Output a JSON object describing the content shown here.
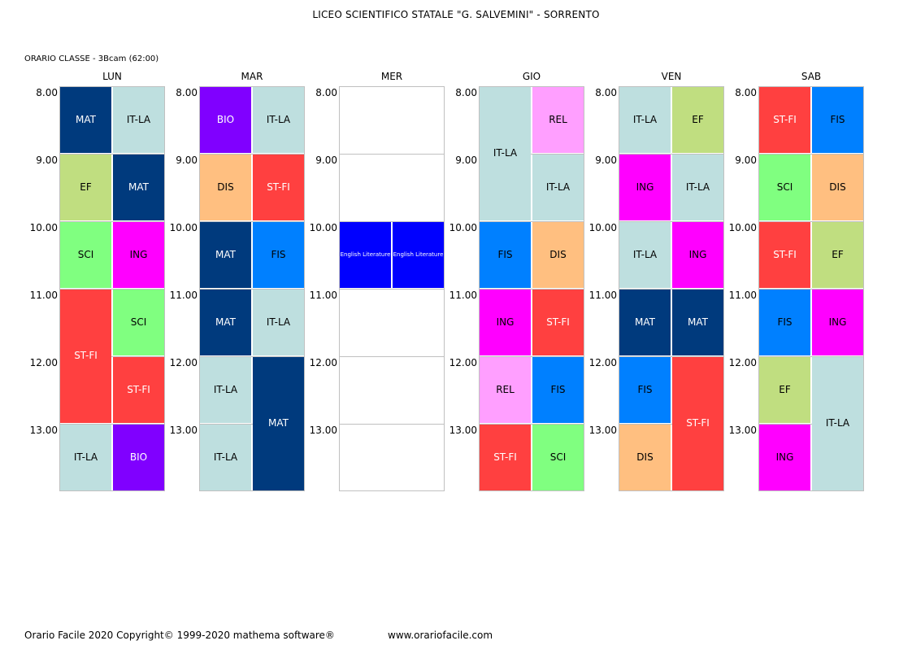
{
  "header": {
    "title": "LICEO SCIENTIFICO STATALE \"G. SALVEMINI\" - SORRENTO",
    "subtitle": "ORARIO CLASSE  -  3Bcam (62:00)"
  },
  "times": [
    "8.00",
    "9.00",
    "10.00",
    "11.00",
    "12.00",
    "13.00"
  ],
  "days": [
    "LUN",
    "MAR",
    "MER",
    "GIO",
    "VEN",
    "SAB"
  ],
  "subject_colors": {
    "MAT": {
      "bg": "#003A7D",
      "fg": "#ffffff"
    },
    "IT-LA": {
      "bg": "#BEDFDF",
      "fg": "#000000"
    },
    "EF": {
      "bg": "#C0DE80",
      "fg": "#000000"
    },
    "SCI": {
      "bg": "#80FF80",
      "fg": "#000000"
    },
    "ING": {
      "bg": "#FF00FF",
      "fg": "#000000"
    },
    "ST-FI": {
      "bg": "#FF4040",
      "fg": "#ffffff"
    },
    "BIO": {
      "bg": "#8000FF",
      "fg": "#ffffff"
    },
    "DIS": {
      "bg": "#FFBF80",
      "fg": "#000000"
    },
    "FIS": {
      "bg": "#0080FF",
      "fg": "#000000"
    },
    "REL": {
      "bg": "#FF9FFF",
      "fg": "#000000"
    },
    "English Literature": {
      "bg": "#0000FF",
      "fg": "#ffffff"
    }
  },
  "lessons": [
    {
      "day": 0,
      "col": 0,
      "start": 0,
      "span": 1,
      "subject": "MAT"
    },
    {
      "day": 0,
      "col": 1,
      "start": 0,
      "span": 1,
      "subject": "IT-LA"
    },
    {
      "day": 0,
      "col": 0,
      "start": 1,
      "span": 1,
      "subject": "EF"
    },
    {
      "day": 0,
      "col": 1,
      "start": 1,
      "span": 1,
      "subject": "MAT"
    },
    {
      "day": 0,
      "col": 0,
      "start": 2,
      "span": 1,
      "subject": "SCI"
    },
    {
      "day": 0,
      "col": 1,
      "start": 2,
      "span": 1,
      "subject": "ING"
    },
    {
      "day": 0,
      "col": 0,
      "start": 3,
      "span": 2,
      "subject": "ST-FI"
    },
    {
      "day": 0,
      "col": 1,
      "start": 3,
      "span": 1,
      "subject": "SCI"
    },
    {
      "day": 0,
      "col": 1,
      "start": 4,
      "span": 1,
      "subject": "ST-FI"
    },
    {
      "day": 0,
      "col": 0,
      "start": 5,
      "span": 1,
      "subject": "IT-LA"
    },
    {
      "day": 0,
      "col": 1,
      "start": 5,
      "span": 1,
      "subject": "BIO"
    },
    {
      "day": 1,
      "col": 0,
      "start": 0,
      "span": 1,
      "subject": "BIO"
    },
    {
      "day": 1,
      "col": 1,
      "start": 0,
      "span": 1,
      "subject": "IT-LA"
    },
    {
      "day": 1,
      "col": 0,
      "start": 1,
      "span": 1,
      "subject": "DIS"
    },
    {
      "day": 1,
      "col": 1,
      "start": 1,
      "span": 1,
      "subject": "ST-FI"
    },
    {
      "day": 1,
      "col": 0,
      "start": 2,
      "span": 1,
      "subject": "MAT"
    },
    {
      "day": 1,
      "col": 1,
      "start": 2,
      "span": 1,
      "subject": "FIS"
    },
    {
      "day": 1,
      "col": 0,
      "start": 3,
      "span": 1,
      "subject": "MAT"
    },
    {
      "day": 1,
      "col": 1,
      "start": 3,
      "span": 1,
      "subject": "IT-LA"
    },
    {
      "day": 1,
      "col": 0,
      "start": 4,
      "span": 1,
      "subject": "IT-LA"
    },
    {
      "day": 1,
      "col": 1,
      "start": 4,
      "span": 2,
      "subject": "MAT"
    },
    {
      "day": 1,
      "col": 0,
      "start": 5,
      "span": 1,
      "subject": "IT-LA"
    },
    {
      "day": 2,
      "col": 0,
      "start": 2,
      "span": 1,
      "subject": "English Literature",
      "small": true
    },
    {
      "day": 2,
      "col": 1,
      "start": 2,
      "span": 1,
      "subject": "English Literature",
      "small": true
    },
    {
      "day": 3,
      "col": 0,
      "start": 0,
      "span": 2,
      "subject": "IT-LA"
    },
    {
      "day": 3,
      "col": 1,
      "start": 0,
      "span": 1,
      "subject": "REL"
    },
    {
      "day": 3,
      "col": 1,
      "start": 1,
      "span": 1,
      "subject": "IT-LA"
    },
    {
      "day": 3,
      "col": 0,
      "start": 2,
      "span": 1,
      "subject": "FIS"
    },
    {
      "day": 3,
      "col": 1,
      "start": 2,
      "span": 1,
      "subject": "DIS"
    },
    {
      "day": 3,
      "col": 0,
      "start": 3,
      "span": 1,
      "subject": "ING"
    },
    {
      "day": 3,
      "col": 1,
      "start": 3,
      "span": 1,
      "subject": "ST-FI"
    },
    {
      "day": 3,
      "col": 0,
      "start": 4,
      "span": 1,
      "subject": "REL"
    },
    {
      "day": 3,
      "col": 1,
      "start": 4,
      "span": 1,
      "subject": "FIS"
    },
    {
      "day": 3,
      "col": 0,
      "start": 5,
      "span": 1,
      "subject": "ST-FI"
    },
    {
      "day": 3,
      "col": 1,
      "start": 5,
      "span": 1,
      "subject": "SCI"
    },
    {
      "day": 4,
      "col": 0,
      "start": 0,
      "span": 1,
      "subject": "IT-LA"
    },
    {
      "day": 4,
      "col": 1,
      "start": 0,
      "span": 1,
      "subject": "EF"
    },
    {
      "day": 4,
      "col": 0,
      "start": 1,
      "span": 1,
      "subject": "ING"
    },
    {
      "day": 4,
      "col": 1,
      "start": 1,
      "span": 1,
      "subject": "IT-LA"
    },
    {
      "day": 4,
      "col": 0,
      "start": 2,
      "span": 1,
      "subject": "IT-LA"
    },
    {
      "day": 4,
      "col": 1,
      "start": 2,
      "span": 1,
      "subject": "ING"
    },
    {
      "day": 4,
      "col": 0,
      "start": 3,
      "span": 1,
      "subject": "MAT"
    },
    {
      "day": 4,
      "col": 1,
      "start": 3,
      "span": 1,
      "subject": "MAT"
    },
    {
      "day": 4,
      "col": 0,
      "start": 4,
      "span": 1,
      "subject": "FIS"
    },
    {
      "day": 4,
      "col": 1,
      "start": 4,
      "span": 2,
      "subject": "ST-FI"
    },
    {
      "day": 4,
      "col": 0,
      "start": 5,
      "span": 1,
      "subject": "DIS"
    },
    {
      "day": 5,
      "col": 0,
      "start": 0,
      "span": 1,
      "subject": "ST-FI"
    },
    {
      "day": 5,
      "col": 1,
      "start": 0,
      "span": 1,
      "subject": "FIS"
    },
    {
      "day": 5,
      "col": 0,
      "start": 1,
      "span": 1,
      "subject": "SCI"
    },
    {
      "day": 5,
      "col": 1,
      "start": 1,
      "span": 1,
      "subject": "DIS"
    },
    {
      "day": 5,
      "col": 0,
      "start": 2,
      "span": 1,
      "subject": "ST-FI"
    },
    {
      "day": 5,
      "col": 1,
      "start": 2,
      "span": 1,
      "subject": "EF"
    },
    {
      "day": 5,
      "col": 0,
      "start": 3,
      "span": 1,
      "subject": "FIS"
    },
    {
      "day": 5,
      "col": 1,
      "start": 3,
      "span": 1,
      "subject": "ING"
    },
    {
      "day": 5,
      "col": 0,
      "start": 4,
      "span": 1,
      "subject": "EF"
    },
    {
      "day": 5,
      "col": 1,
      "start": 4,
      "span": 2,
      "subject": "IT-LA"
    },
    {
      "day": 5,
      "col": 0,
      "start": 5,
      "span": 1,
      "subject": "ING"
    }
  ],
  "footer": {
    "copyright": "Orario Facile 2020  Copyright© 1999-2020 mathema software®",
    "website": "www.orariofacile.com"
  }
}
